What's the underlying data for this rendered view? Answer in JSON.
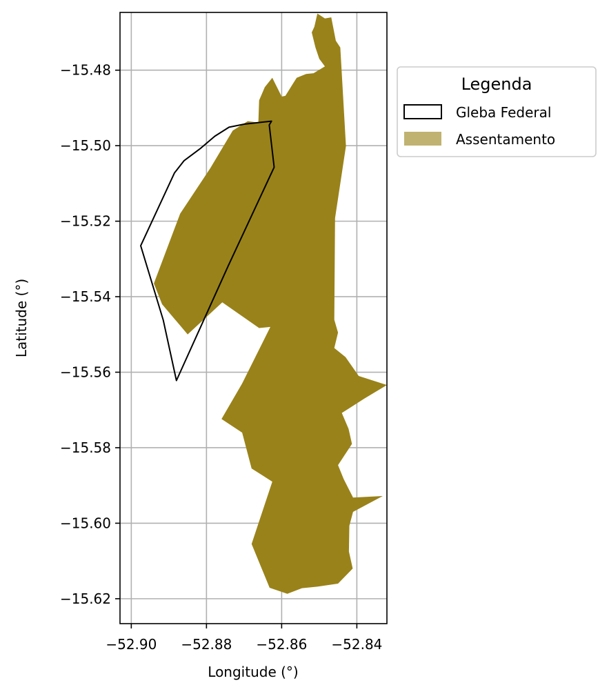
{
  "chart_data": {
    "type": "map",
    "xlabel": "Longitude (°)",
    "ylabel": "Latitude (°)",
    "xlim": [
      -52.903,
      -52.832
    ],
    "ylim": [
      -15.6266,
      -15.4647
    ],
    "grid": true,
    "x_ticks": [
      -52.9,
      -52.88,
      -52.86,
      -52.84
    ],
    "x_tick_labels": [
      "−52.90",
      "−52.88",
      "−52.86",
      "−52.84"
    ],
    "y_ticks": [
      -15.48,
      -15.5,
      -15.52,
      -15.54,
      -15.56,
      -15.58,
      -15.6,
      -15.62
    ],
    "y_tick_labels": [
      "−15.48",
      "−15.50",
      "−15.52",
      "−15.54",
      "−15.56",
      "−15.58",
      "−15.60",
      "−15.62"
    ],
    "legend": {
      "title": "Legenda",
      "placement": "outside-upper-right",
      "entries": [
        {
          "label": "Gleba Federal",
          "style": "outline",
          "color": "#000000"
        },
        {
          "label": "Assentamento",
          "style": "fill",
          "color": "#998219"
        }
      ]
    },
    "layers": [
      {
        "name": "Assentamento",
        "fill": "#998219",
        "coordinates": [
          [
            -52.8456,
            -15.4722
          ],
          [
            -52.8444,
            -15.474
          ],
          [
            -52.8429,
            -15.5001
          ],
          [
            -52.8458,
            -15.5192
          ],
          [
            -52.846,
            -15.5461
          ],
          [
            -52.845,
            -15.5495
          ],
          [
            -52.846,
            -15.5536
          ],
          [
            -52.843,
            -15.556
          ],
          [
            -52.8395,
            -15.561
          ],
          [
            -52.832,
            -15.5634
          ],
          [
            -52.838,
            -15.567
          ],
          [
            -52.844,
            -15.5708
          ],
          [
            -52.8422,
            -15.575
          ],
          [
            -52.8413,
            -15.579
          ],
          [
            -52.845,
            -15.5846
          ],
          [
            -52.8435,
            -15.5883
          ],
          [
            -52.841,
            -15.5932
          ],
          [
            -52.8331,
            -15.5928
          ],
          [
            -52.841,
            -15.597
          ],
          [
            -52.842,
            -15.6007
          ],
          [
            -52.8421,
            -15.6075
          ],
          [
            -52.8411,
            -15.612
          ],
          [
            -52.845,
            -15.616
          ],
          [
            -52.8505,
            -15.6168
          ],
          [
            -52.8546,
            -15.6172
          ],
          [
            -52.8585,
            -15.6187
          ],
          [
            -52.8632,
            -15.6171
          ],
          [
            -52.868,
            -15.6055
          ],
          [
            -52.8625,
            -15.589
          ],
          [
            -52.868,
            -15.5855
          ],
          [
            -52.8705,
            -15.576
          ],
          [
            -52.876,
            -15.5724
          ],
          [
            -52.8705,
            -15.563
          ],
          [
            -52.863,
            -15.548
          ],
          [
            -52.866,
            -15.5483
          ],
          [
            -52.8758,
            -15.5415
          ],
          [
            -52.885,
            -15.55
          ],
          [
            -52.8918,
            -15.542
          ],
          [
            -52.894,
            -15.5365
          ],
          [
            -52.887,
            -15.518
          ],
          [
            -52.879,
            -15.506
          ],
          [
            -52.873,
            -15.496
          ],
          [
            -52.869,
            -15.4935
          ],
          [
            -52.8662,
            -15.4939
          ],
          [
            -52.866,
            -15.488
          ],
          [
            -52.8645,
            -15.4845
          ],
          [
            -52.8625,
            -15.482
          ],
          [
            -52.86,
            -15.487
          ],
          [
            -52.859,
            -15.4868
          ],
          [
            -52.857,
            -15.4836
          ],
          [
            -52.856,
            -15.482
          ],
          [
            -52.8535,
            -15.481
          ],
          [
            -52.8515,
            -15.4808
          ],
          [
            -52.8485,
            -15.479
          ],
          [
            -52.85,
            -15.477
          ],
          [
            -52.851,
            -15.474
          ],
          [
            -52.852,
            -15.47
          ],
          [
            -52.8513,
            -15.4685
          ],
          [
            -52.8505,
            -15.465
          ],
          [
            -52.8485,
            -15.4663
          ],
          [
            -52.8468,
            -15.466
          ]
        ]
      },
      {
        "name": "Gleba Federal",
        "fill": "none",
        "stroke": "#000000",
        "coordinates": [
          [
            -52.8627,
            -15.4935
          ],
          [
            -52.8633,
            -15.4945
          ],
          [
            -52.862,
            -15.5057
          ],
          [
            -52.8742,
            -15.5318
          ],
          [
            -52.888,
            -15.5622
          ],
          [
            -52.8915,
            -15.5462
          ],
          [
            -52.8975,
            -15.5265
          ],
          [
            -52.8885,
            -15.5072
          ],
          [
            -52.886,
            -15.504
          ],
          [
            -52.8817,
            -15.5008
          ],
          [
            -52.8778,
            -15.4975
          ],
          [
            -52.874,
            -15.4951
          ],
          [
            -52.87,
            -15.4943
          ]
        ]
      }
    ]
  }
}
